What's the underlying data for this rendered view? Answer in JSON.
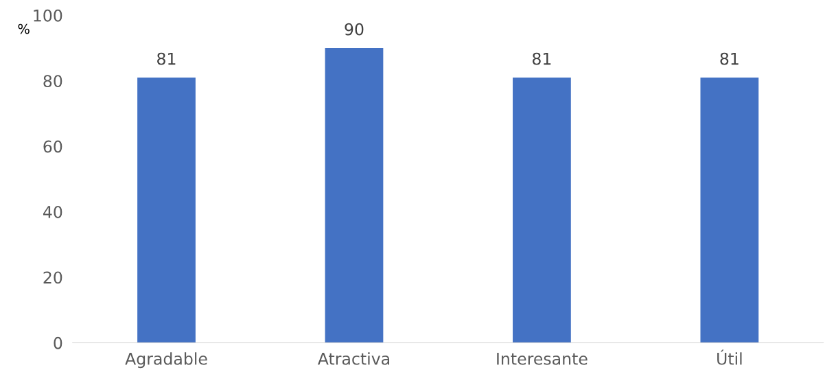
{
  "chart_data": {
    "type": "bar",
    "ylabel": "%",
    "categories": [
      "Agradable",
      "Atractiva",
      "Interesante",
      "Útil"
    ],
    "values": [
      81,
      90,
      81,
      81
    ],
    "color": "#4472c4",
    "ylim": [
      0,
      100
    ],
    "yticks": [
      0,
      20,
      40,
      60,
      80,
      100
    ],
    "grid": false,
    "data_labels": true
  }
}
